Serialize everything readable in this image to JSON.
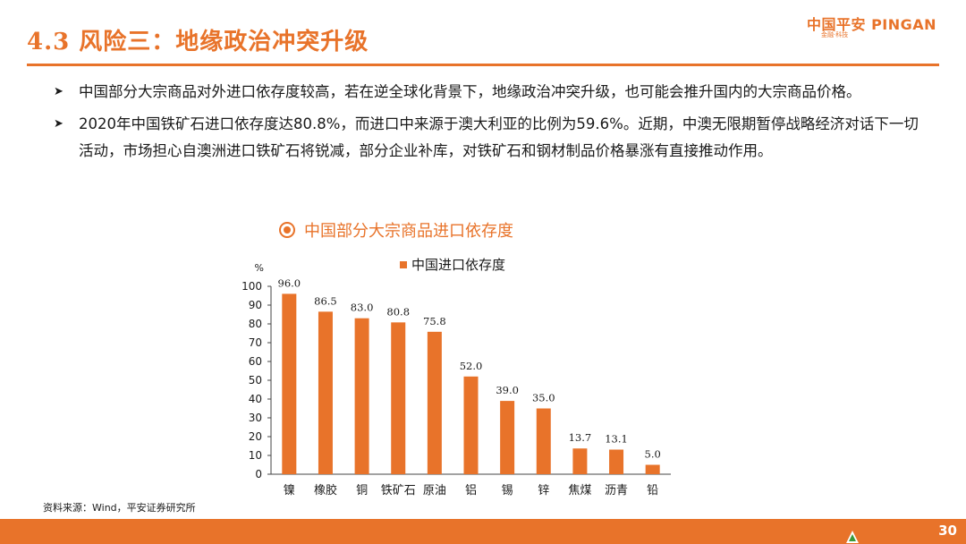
{
  "header": {
    "title": "4.3 风险三：地缘政治冲突升级",
    "logo_main": "中国平安 PINGAN",
    "logo_sub": "金融·科技"
  },
  "bullets": [
    {
      "text": "中国部分大宗商品对外进口依存度较高，若在逆全球化背景下，地缘政治冲突升级，也可能会推升国内的大宗商品价格。"
    },
    {
      "text": "2020年中国铁矿石进口依存度达80.8%，而进口中来源于澳大利亚的比例为59.6%。近期，中澳无限期暂停战略经济对话下一切活动，市场担心自澳洲进口铁矿石将锐减，部分企业补库，对铁矿石和钢材制品价格暴涨有直接推动作用。"
    }
  ],
  "chart_title": "中国部分大宗商品进口依存度",
  "chart_data": {
    "type": "bar",
    "categories": [
      "镍",
      "橡胶",
      "铜",
      "铁矿石",
      "原油",
      "铝",
      "锡",
      "锌",
      "焦煤",
      "沥青",
      "铅"
    ],
    "series": [
      {
        "name": "中国进口依存度",
        "values": [
          96.0,
          86.5,
          83.0,
          80.8,
          75.8,
          52.0,
          39.0,
          35.0,
          13.7,
          13.1,
          5.0
        ]
      }
    ],
    "ylabel": "%",
    "ylim": [
      0,
      100
    ],
    "yticks": [
      0,
      10,
      20,
      30,
      40,
      50,
      60,
      70,
      80,
      90,
      100
    ],
    "data_labels": [
      "96.0",
      "86.5",
      "83.0",
      "80.8",
      "75.8",
      "52.0",
      "39.0",
      "35.0",
      "13.7",
      "13.1",
      "5.0"
    ],
    "legend_position": "top",
    "grid": false,
    "bar_color": "#e8732a"
  },
  "source": "资料来源：Wind，平安证券研究所",
  "page_number": "30",
  "colors": {
    "accent": "#e8732a",
    "text": "#1a1a1a"
  }
}
